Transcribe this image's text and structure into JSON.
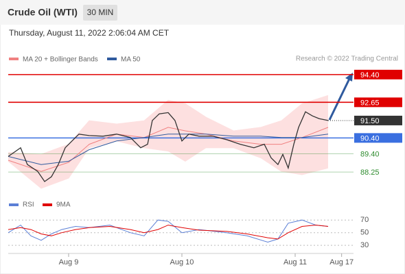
{
  "header": {
    "title": "Crude Oil (WTI)",
    "timeframe": "30 MIN",
    "timestamp": "Thursday, August 11, 2022 2:06:04 AM CET"
  },
  "source": "Research © 2022 Trading Central",
  "chart_data": [
    {
      "type": "line",
      "xlim": [
        0.467,
        3.515
      ],
      "ylim": [
        87,
        95
      ],
      "x": [
        0.467,
        0.576,
        0.636,
        0.727,
        0.788,
        0.848,
        0.909,
        0.97,
        1.03,
        1.091,
        1.182,
        1.303,
        1.424,
        1.545,
        1.636,
        1.697,
        1.739,
        1.8,
        1.879,
        1.939,
        2.0,
        2.061,
        2.152,
        2.273,
        2.394,
        2.515,
        2.636,
        2.727,
        2.788,
        2.848,
        2.891,
        2.939,
        2.988,
        3.03,
        3.091,
        3.152,
        3.212,
        3.291
      ],
      "values": [
        89.23,
        89.78,
        88.72,
        88.29,
        87.65,
        87.95,
        88.72,
        89.78,
        90.21,
        90.64,
        90.55,
        90.51,
        90.64,
        90.43,
        89.78,
        90.0,
        91.5,
        91.92,
        92.0,
        91.5,
        90.21,
        90.64,
        90.51,
        90.51,
        90.29,
        90.0,
        89.78,
        90.0,
        89.14,
        88.72,
        89.36,
        88.5,
        90.0,
        91.07,
        92.05,
        91.79,
        91.62,
        91.5
      ],
      "color": "#333333",
      "overlays": [
        {
          "name": "MA 20 + Bollinger Bands",
          "color": "#f08080",
          "band_color": "#fde0e0",
          "x": [
            0.467,
            0.758,
            1.0,
            1.182,
            1.424,
            1.667,
            1.879,
            2.03,
            2.212,
            2.455,
            2.697,
            2.879,
            3.061,
            3.291
          ],
          "values": [
            88.99,
            88.29,
            88.86,
            90.0,
            90.64,
            90.43,
            91.07,
            90.85,
            90.64,
            90.21,
            90.0,
            90.0,
            90.43,
            91.07
          ],
          "upper": [
            89.49,
            89.36,
            90.0,
            91.49,
            91.28,
            91.49,
            92.78,
            92.56,
            91.71,
            90.85,
            91.07,
            91.49,
            92.56,
            93.08
          ],
          "lower": [
            88.93,
            87.22,
            87.86,
            89.78,
            90.21,
            89.78,
            89.57,
            88.93,
            89.78,
            89.78,
            89.14,
            88.29,
            88.08,
            88.5
          ]
        },
        {
          "name": "MA 50",
          "color": "#2f5a9e",
          "x": [
            0.467,
            0.758,
            1.0,
            1.182,
            1.424,
            1.667,
            1.879,
            2.03,
            2.212,
            2.455,
            2.697,
            2.879,
            3.061,
            3.291
          ],
          "values": [
            89.23,
            88.72,
            88.93,
            89.66,
            90.21,
            90.43,
            90.64,
            90.64,
            90.64,
            90.51,
            90.51,
            90.43,
            90.43,
            90.64
          ]
        }
      ],
      "levels": [
        {
          "value": 94.4,
          "label": "94.40",
          "color": "#e00000",
          "style": "box"
        },
        {
          "value": 92.65,
          "label": "92.65",
          "color": "#e00000",
          "style": "box"
        },
        {
          "value": 91.5,
          "label": "91.50",
          "color": "#333333",
          "style": "dotted"
        },
        {
          "value": 90.4,
          "label": "90.40",
          "color": "#3a6fe0",
          "style": "box"
        },
        {
          "value": 89.4,
          "label": "89.40",
          "color": "#2e8b2e",
          "style": "text"
        },
        {
          "value": 88.25,
          "label": "88.25",
          "color": "#2e8b2e",
          "style": "text"
        }
      ]
    },
    {
      "type": "line",
      "xlim": [
        0.467,
        3.515
      ],
      "ylim": [
        15,
        80
      ],
      "yticks": [
        30,
        50,
        70
      ],
      "grid": true,
      "xticks": [
        {
          "value": 1,
          "label": "Aug 9"
        },
        {
          "value": 2,
          "label": "Aug 10"
        },
        {
          "value": 3,
          "label": "Aug 11"
        },
        {
          "value": 3.41,
          "label": "Aug 17"
        }
      ],
      "x": [
        0.467,
        0.576,
        0.667,
        0.758,
        0.848,
        0.939,
        1.061,
        1.182,
        1.364,
        1.545,
        1.667,
        1.788,
        1.879,
        2.0,
        2.152,
        2.394,
        2.576,
        2.758,
        2.848,
        2.939,
        3.061,
        3.182,
        3.291
      ],
      "series": [
        {
          "name": "RSI",
          "color": "#5b7fd6",
          "values": [
            50,
            62,
            45,
            38,
            48,
            55,
            60,
            58,
            62,
            50,
            45,
            70,
            68,
            50,
            55,
            50,
            45,
            35,
            40,
            65,
            70,
            62,
            60
          ]
        },
        {
          "name": "9MA",
          "color": "#e00000",
          "values": [
            55,
            58,
            55,
            48,
            45,
            50,
            55,
            58,
            60,
            55,
            50,
            55,
            62,
            58,
            54,
            52,
            48,
            42,
            40,
            50,
            60,
            62,
            60
          ]
        }
      ]
    }
  ]
}
